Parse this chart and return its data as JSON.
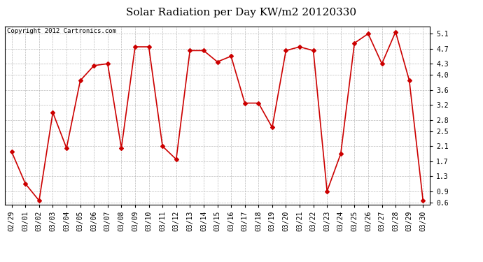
{
  "title": "Solar Radiation per Day KW/m2 20120330",
  "copyright_text": "Copyright 2012 Cartronics.com",
  "dates": [
    "02/29",
    "03/01",
    "03/02",
    "03/03",
    "03/04",
    "03/05",
    "03/06",
    "03/07",
    "03/08",
    "03/09",
    "03/10",
    "03/11",
    "03/12",
    "03/13",
    "03/14",
    "03/15",
    "03/16",
    "03/17",
    "03/18",
    "03/19",
    "03/20",
    "03/21",
    "03/22",
    "03/23",
    "03/24",
    "03/25",
    "03/26",
    "03/27",
    "03/28",
    "03/29",
    "03/30"
  ],
  "values": [
    1.95,
    1.1,
    0.65,
    3.0,
    2.05,
    3.85,
    4.25,
    4.3,
    2.05,
    4.75,
    4.75,
    2.1,
    1.75,
    4.65,
    4.65,
    4.35,
    4.5,
    3.25,
    3.25,
    2.6,
    4.65,
    4.75,
    4.65,
    0.9,
    1.9,
    4.85,
    5.1,
    4.3,
    5.15,
    3.85,
    0.65
  ],
  "line_color": "#cc0000",
  "marker": "D",
  "marker_size": 3,
  "line_width": 1.2,
  "background_color": "#ffffff",
  "grid_color": "#aaaaaa",
  "yticks": [
    0.6,
    0.9,
    1.3,
    1.7,
    2.1,
    2.5,
    2.8,
    3.2,
    3.6,
    4.0,
    4.3,
    4.7,
    5.1
  ],
  "ylim": [
    0.55,
    5.3
  ],
  "title_fontsize": 11,
  "tick_fontsize": 7,
  "copyright_fontsize": 6.5
}
